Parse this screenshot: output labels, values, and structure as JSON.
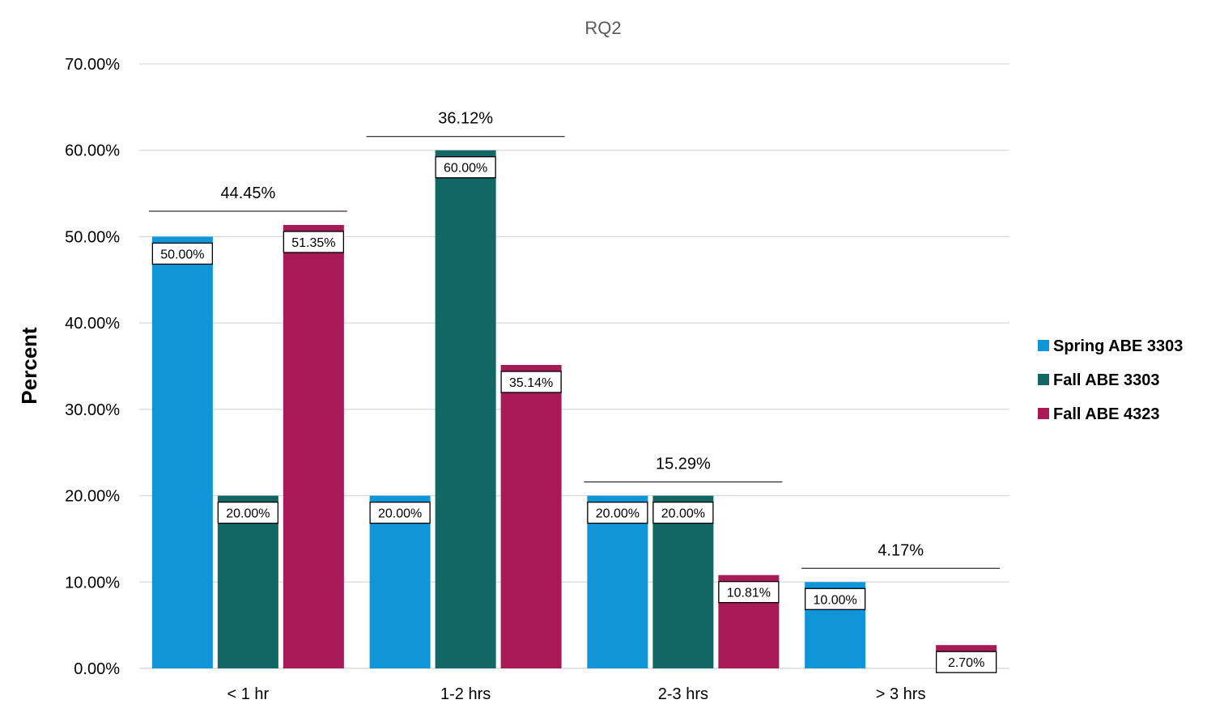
{
  "chart_data": {
    "type": "bar",
    "title": "RQ2",
    "xlabel": "",
    "ylabel": "Percent",
    "ylim": [
      0,
      70
    ],
    "yticks": [
      0,
      10,
      20,
      30,
      40,
      50,
      60,
      70
    ],
    "ytick_labels": [
      "0.00%",
      "10.00%",
      "20.00%",
      "30.00%",
      "40.00%",
      "50.00%",
      "60.00%",
      "70.00%"
    ],
    "categories": [
      "< 1 hr",
      "1-2 hrs",
      "2-3 hrs",
      "> 3 hrs"
    ],
    "series": [
      {
        "name": "Spring ABE 3303",
        "color": "#1096D8",
        "values": [
          50.0,
          20.0,
          20.0,
          10.0
        ],
        "labels": [
          "50.00%",
          "20.00%",
          "20.00%",
          "10.00%"
        ]
      },
      {
        "name": "Fall ABE 3303",
        "color": "#126664",
        "values": [
          20.0,
          60.0,
          20.0,
          0
        ],
        "labels": [
          "20.00%",
          "60.00%",
          "20.00%",
          ""
        ]
      },
      {
        "name": "Fall ABE 4323",
        "color": "#A71A55",
        "values": [
          51.35,
          35.14,
          10.81,
          2.7
        ],
        "labels": [
          "51.35%",
          "35.14%",
          "10.81%",
          "2.70%"
        ]
      }
    ],
    "group_averages": [
      44.45,
      36.12,
      15.29,
      4.17
    ],
    "group_average_labels": [
      "44.45%",
      "36.12%",
      "15.29%",
      "4.17%"
    ],
    "grid": true,
    "legend_position": "right"
  }
}
